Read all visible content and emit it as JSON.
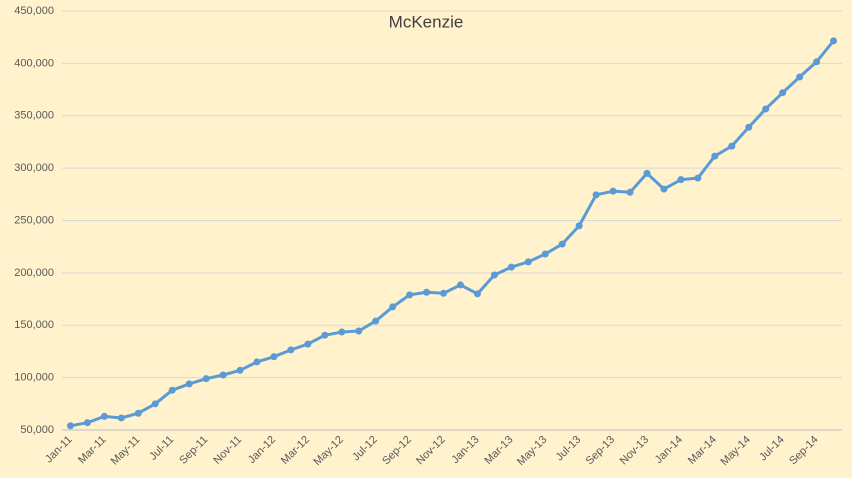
{
  "chart_data": {
    "type": "line",
    "title": "McKenzie",
    "categories": [
      "Jan-11",
      null,
      "Mar-11",
      null,
      "May-11",
      null,
      "Jul-11",
      null,
      "Sep-11",
      null,
      "Nov-11",
      null,
      "Jan-12",
      null,
      "Mar-12",
      null,
      "May-12",
      null,
      "Jul-12",
      null,
      "Sep-12",
      null,
      "Nov-12",
      null,
      "Jan-13",
      null,
      "Mar-13",
      null,
      "May-13",
      null,
      "Jul-13",
      null,
      "Sep-13",
      null,
      "Nov-13",
      null,
      "Jan-14",
      null,
      "Mar-14",
      null,
      "May-14",
      null,
      "Jul-14",
      null,
      "Sep-14",
      null
    ],
    "series": [
      {
        "name": "McKenzie",
        "color": "#5b9bd5",
        "values": [
          54000,
          57000,
          63000,
          61500,
          66000,
          75000,
          88000,
          94000,
          99000,
          102500,
          107000,
          115000,
          120000,
          126500,
          132000,
          140500,
          143500,
          144500,
          154000,
          167500,
          179000,
          181500,
          180500,
          188500,
          180000,
          198000,
          205500,
          210500,
          218000,
          227500,
          245000,
          274500,
          278000,
          277000,
          295000,
          280000,
          289000,
          290500,
          311500,
          321000,
          339000,
          356500,
          372000,
          387000,
          401500,
          421500
        ]
      }
    ],
    "ylim": [
      50000,
      450000
    ],
    "yticks": [
      {
        "value": 50000,
        "label": "50,000"
      },
      {
        "value": 100000,
        "label": "100,000"
      },
      {
        "value": 150000,
        "label": "150,000"
      },
      {
        "value": 200000,
        "label": "200,000"
      },
      {
        "value": 250000,
        "label": "250,000"
      },
      {
        "value": 300000,
        "label": "300,000"
      },
      {
        "value": 350000,
        "label": "350,000"
      },
      {
        "value": 400000,
        "label": "400,000"
      },
      {
        "value": 450000,
        "label": "450,000"
      }
    ],
    "grid": true
  }
}
